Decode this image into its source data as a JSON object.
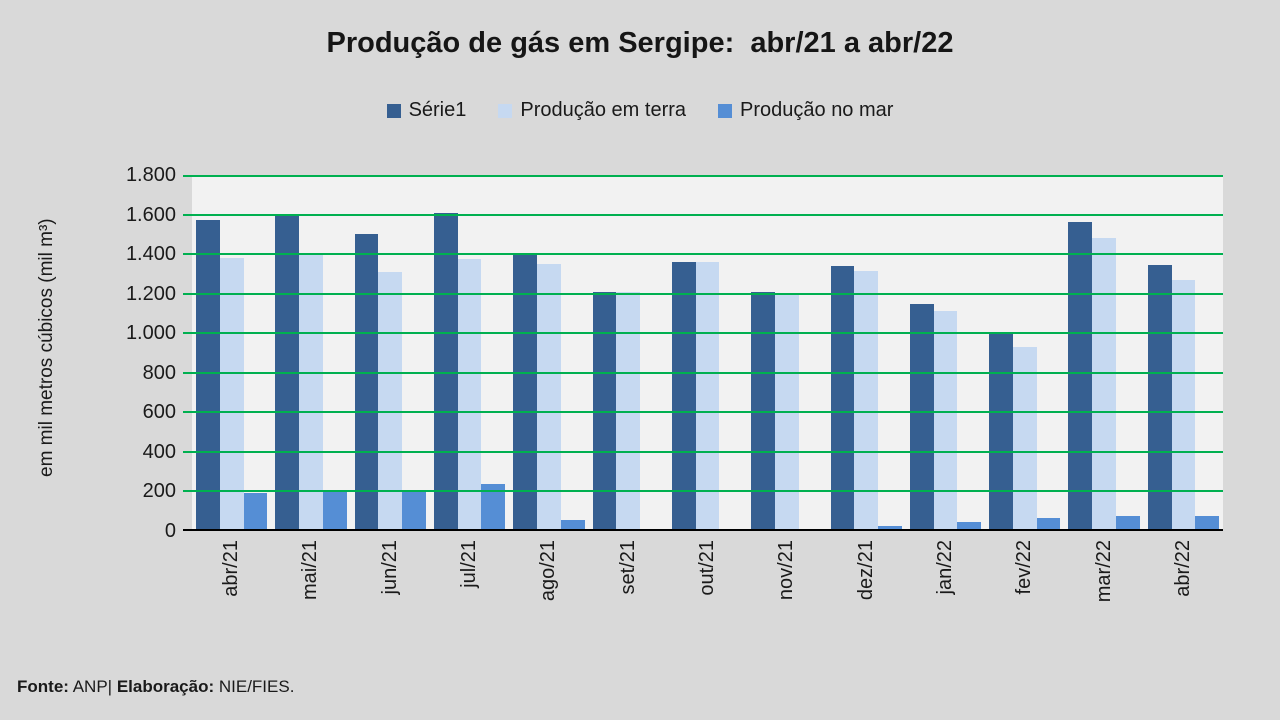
{
  "slide": {
    "title": "Produção de gás em Sergipe:  abr/21 a abr/22",
    "footer": {
      "fonte_label": "Fonte:",
      "fonte_value": " ANP| ",
      "elaboracao_label": "Elaboração:",
      "elaboracao_value": " NIE/FIES."
    }
  },
  "chart_data": {
    "type": "bar",
    "title": "Produção de gás em Sergipe:  abr/21 a abr/22",
    "xlabel": "",
    "ylabel": "em mil metros cúbicos (mil m³)",
    "ylim": [
      0,
      1800
    ],
    "ytick_interval": 200,
    "yticks_display": [
      "1.800",
      "1.600",
      "1.400",
      "1.200",
      "1.000",
      "800",
      "600",
      "400",
      "200",
      "0"
    ],
    "grid": "horizontal",
    "legend_position": "top",
    "categories": [
      "abr/21",
      "mai/21",
      "jun/21",
      "jul/21",
      "ago/21",
      "set/21",
      "out/21",
      "nov/21",
      "dez/21",
      "jan/22",
      "fev/22",
      "mar/22",
      "abr/22"
    ],
    "series": [
      {
        "name": "Série1",
        "color": "#365F91",
        "values": [
          1575,
          1605,
          1500,
          1610,
          1400,
          1210,
          1360,
          1210,
          1340,
          1150,
          1000,
          1560,
          1345
        ]
      },
      {
        "name": "Produção em terra",
        "color": "#C6D9F1",
        "values": [
          1380,
          1400,
          1310,
          1375,
          1350,
          1210,
          1360,
          1200,
          1315,
          1110,
          930,
          1480,
          1270
        ]
      },
      {
        "name": "Produção no mar",
        "color": "#558ED5",
        "values": [
          190,
          200,
          195,
          240,
          55,
          0,
          0,
          10,
          25,
          45,
          65,
          75,
          75
        ]
      }
    ],
    "colors": {
      "page_background": "#D9D9D9",
      "plot_background": "#F2F2F2",
      "gridline": "#00B050",
      "axis_line": "#000000",
      "text": "#1A1A1A"
    }
  }
}
